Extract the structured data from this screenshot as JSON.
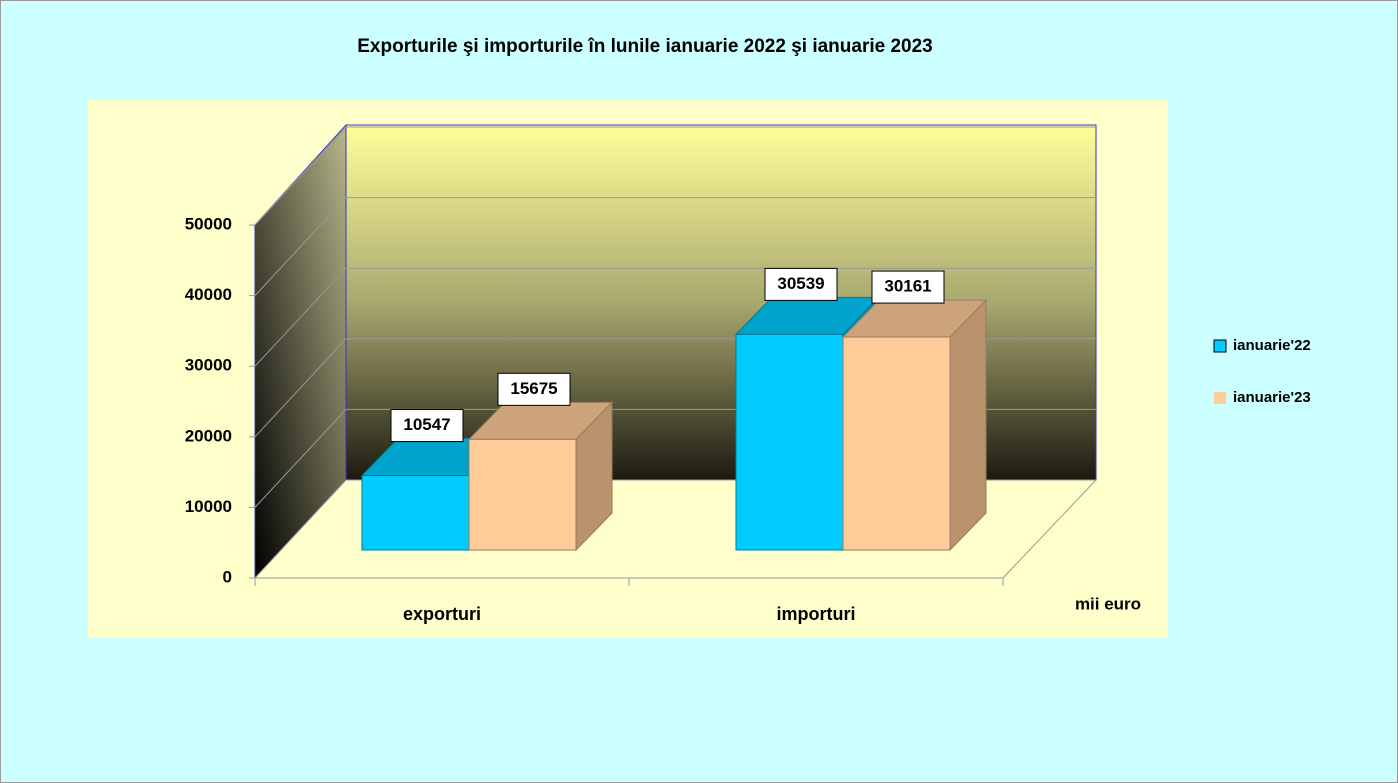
{
  "chart_data": {
    "type": "bar3d",
    "title": "Exporturile şi importurile în lunile ianuarie 2022 şi ianuarie 2023",
    "categories": [
      "exporturi",
      "importuri"
    ],
    "series": [
      {
        "name": "ianuarie'22",
        "color": "#00ccff",
        "values": [
          10547,
          30539
        ]
      },
      {
        "name": "ianuarie'23",
        "color": "#ffcc99",
        "values": [
          15675,
          30161
        ]
      }
    ],
    "unit_label": "mii euro",
    "ylim": [
      0,
      50000
    ],
    "yticks": [
      0,
      10000,
      20000,
      30000,
      40000,
      50000
    ],
    "grid": true,
    "legend": "right"
  }
}
